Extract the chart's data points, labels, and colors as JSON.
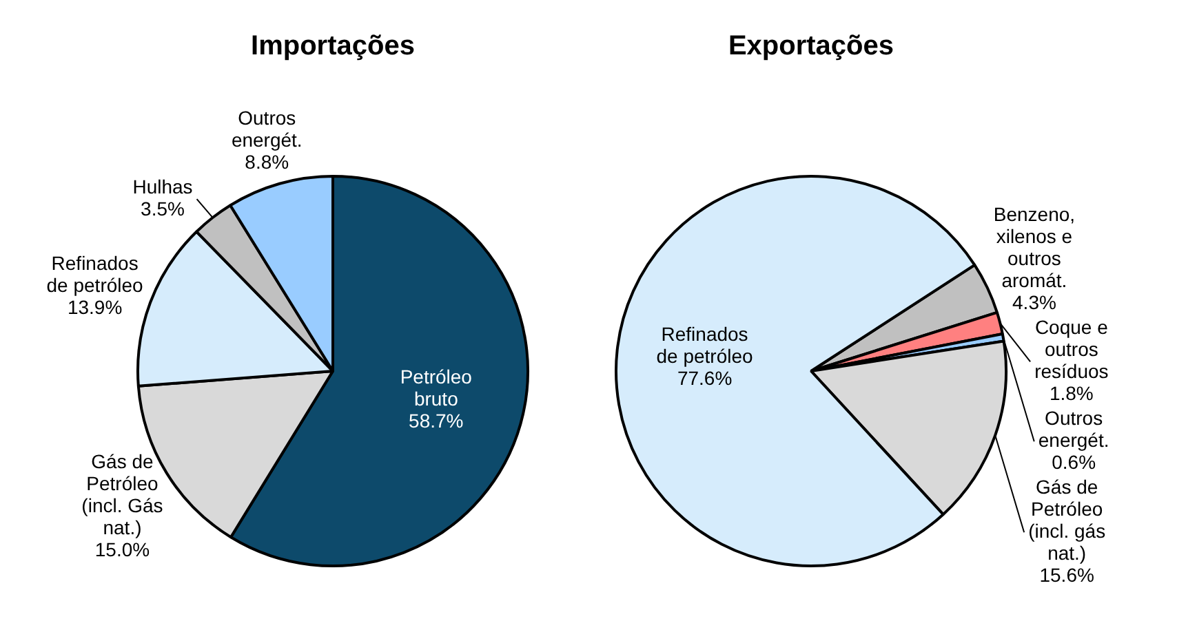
{
  "chart_data": [
    {
      "type": "pie",
      "title": "Importações",
      "categories": [
        "Petróleo bruto",
        "Gás de Petróleo (incl. Gás nat.)",
        "Refinados de petróleo",
        "Hulhas",
        "Outros energét."
      ],
      "values": [
        58.7,
        15.0,
        13.9,
        3.5,
        8.8
      ],
      "value_labels": [
        "58.7%",
        "15.0%",
        "13.9%",
        "3.5%",
        "8.8%"
      ],
      "colors": [
        "#0d4a6b",
        "#d9d9d9",
        "#d6ecfc",
        "#c0c0c0",
        "#99ccff"
      ]
    },
    {
      "type": "pie",
      "title": "Exportações",
      "categories": [
        "Benzeno, xilenos e outros aromát.",
        "Coque e outros resíduos",
        "Outros energét.",
        "Gás de Petróleo (incl. gás nat.)",
        "Refinados de petróleo"
      ],
      "values": [
        4.3,
        1.8,
        0.6,
        15.6,
        77.6
      ],
      "value_labels": [
        "4.3%",
        "1.8%",
        "0.6%",
        "15.6%",
        "77.6%"
      ],
      "colors": [
        "#c0c0c0",
        "#ff8080",
        "#99ccff",
        "#d9d9d9",
        "#d6ecfc"
      ]
    }
  ]
}
